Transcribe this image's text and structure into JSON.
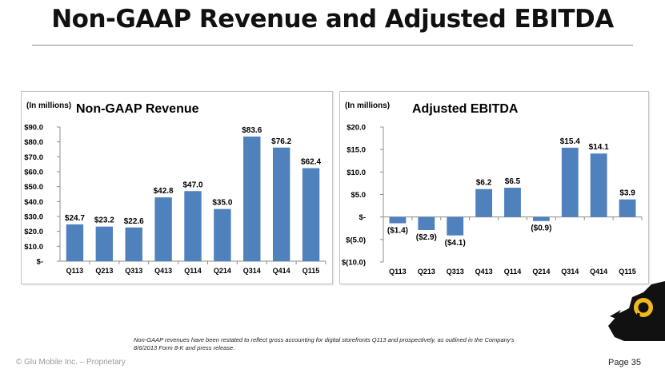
{
  "page": {
    "title": "Non-GAAP Revenue and Adjusted EBITDA",
    "footnote": "Non-GAAP revenues have been restated to reflect gross accounting for digital storefronts Q113 and prospectively, as outlined in the Company's 8/6/2013 Form 8-K and press release.",
    "footer_left": "© Glu Mobile Inc. – Proprietary",
    "footer_right": "Page 35"
  },
  "colors": {
    "bar": "#4f81bd",
    "axis": "#8c8c8c",
    "panel_border": "#c4c4c4",
    "logo": "#111111",
    "logo_mark": "#f2b81c"
  },
  "logo": {
    "icon": "glu-logo-icon"
  },
  "chart_data": [
    {
      "type": "bar",
      "title": "Non-GAAP Revenue",
      "subtitle": "(In millions)",
      "categories": [
        "Q113",
        "Q213",
        "Q313",
        "Q413",
        "Q114",
        "Q214",
        "Q314",
        "Q414",
        "Q115"
      ],
      "values": [
        24.7,
        23.2,
        22.6,
        42.8,
        47.0,
        35.0,
        83.6,
        76.2,
        62.4
      ],
      "value_labels": [
        "$24.7",
        "$23.2",
        "$22.6",
        "$42.8",
        "$47.0",
        "$35.0",
        "$83.6",
        "$76.2",
        "$62.4"
      ],
      "ylim": [
        0,
        90
      ],
      "yticks": [
        0,
        10,
        20,
        30,
        40,
        50,
        60,
        70,
        80,
        90
      ],
      "ytick_labels": [
        "$-",
        "$10.0",
        "$20.0",
        "$30.0",
        "$40.0",
        "$50.0",
        "$60.0",
        "$70.0",
        "$80.0",
        "$90.0"
      ],
      "grid": false,
      "legend": "none"
    },
    {
      "type": "bar",
      "title": "Adjusted EBITDA",
      "subtitle": "(In millions)",
      "categories": [
        "Q113",
        "Q213",
        "Q313",
        "Q413",
        "Q114",
        "Q214",
        "Q314",
        "Q414",
        "Q115"
      ],
      "values": [
        -1.4,
        -2.9,
        -4.1,
        6.2,
        6.5,
        -0.9,
        15.4,
        14.1,
        3.9
      ],
      "value_labels": [
        "($1.4)",
        "($2.9)",
        "($4.1)",
        "$6.2",
        "$6.5",
        "($0.9)",
        "$15.4",
        "$14.1",
        "$3.9"
      ],
      "ylim": [
        -10,
        20
      ],
      "yticks": [
        -10,
        -5,
        0,
        5,
        10,
        15,
        20
      ],
      "ytick_labels": [
        "$(10.0)",
        "$(5.0)",
        "$-",
        "$5.0",
        "$10.0",
        "$15.0",
        "$20.0"
      ],
      "grid": false,
      "legend": "none"
    }
  ]
}
